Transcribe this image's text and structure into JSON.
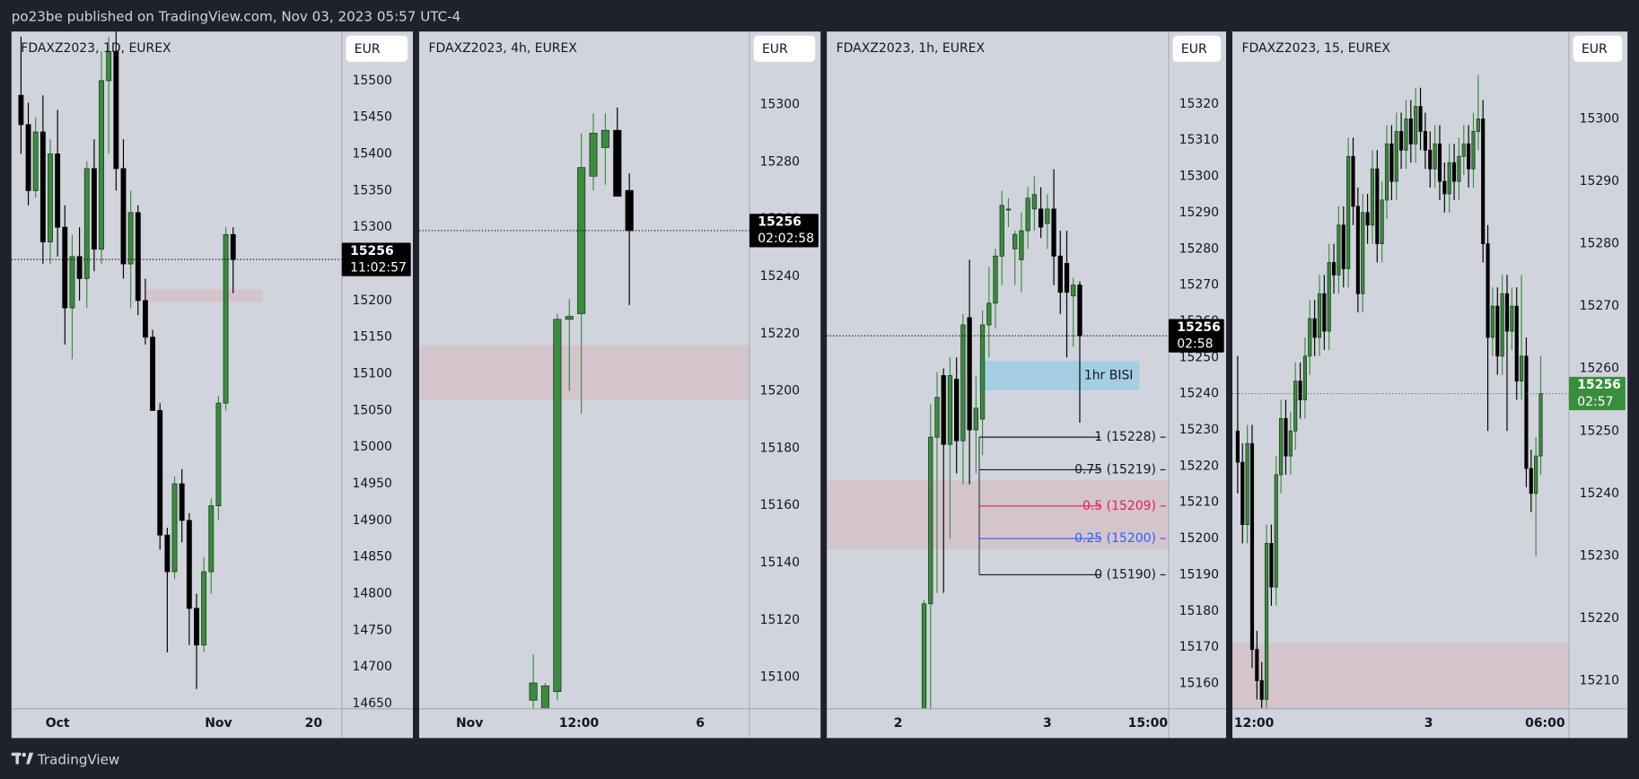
{
  "header": "po23be published on TradingView.com, Nov 03, 2023 05:57 UTC-4",
  "footer": "TradingView",
  "chart_data": [
    {
      "type": "candlestick",
      "title": "FDAXZ2023, 1D, EUREX",
      "currency": "EUR",
      "up_color": "#3b8c3e",
      "down_color": "#000000",
      "xlim": [
        -30.3,
        14.86
      ],
      "xticks": [
        {
          "value": -24,
          "label": "Oct"
        },
        {
          "value": -2,
          "label": "Nov"
        },
        {
          "value": 11,
          "label": "20"
        }
      ],
      "ylim": [
        14643,
        15567
      ],
      "yticks": [
        14650,
        14700,
        14750,
        14800,
        14850,
        14900,
        14950,
        15000,
        15050,
        15100,
        15150,
        15200,
        15250,
        15300,
        15350,
        15400,
        15450,
        15500
      ],
      "x": [
        -29,
        -28,
        -27,
        -26,
        -25,
        -24,
        -23,
        -22,
        -21,
        -20,
        -19,
        -18,
        -17,
        -16,
        -15,
        -14,
        -13,
        -12,
        -11,
        -10,
        -9,
        -8,
        -7,
        -6,
        -5,
        -4,
        -3,
        -2,
        -1,
        0
      ],
      "open": [
        15480,
        15440,
        15350,
        15430,
        15280,
        15400,
        15300,
        15190,
        15260,
        15230,
        15380,
        15270,
        15500,
        15540,
        15380,
        15250,
        15320,
        15200,
        15150,
        15050,
        14880,
        14830,
        14950,
        14900,
        14780,
        14730,
        14830,
        14920,
        15060,
        15290
      ],
      "high": [
        15560,
        15470,
        15450,
        15480,
        15420,
        15460,
        15330,
        15290,
        15300,
        15390,
        15420,
        15540,
        15560,
        15570,
        15420,
        15350,
        15330,
        15230,
        15160,
        15060,
        14890,
        14960,
        14970,
        14910,
        14800,
        14850,
        14930,
        15070,
        15300,
        15300
      ],
      "low": [
        15400,
        15330,
        15340,
        15250,
        15250,
        15260,
        15140,
        15120,
        15200,
        15190,
        15240,
        15250,
        15400,
        15350,
        15230,
        15190,
        15180,
        15140,
        15050,
        14860,
        14720,
        14820,
        14870,
        14730,
        14670,
        14720,
        14800,
        14900,
        15050,
        15210
      ],
      "close": [
        15440,
        15350,
        15430,
        15280,
        15400,
        15300,
        15190,
        15260,
        15230,
        15380,
        15270,
        15500,
        15540,
        15380,
        15250,
        15320,
        15200,
        15150,
        15050,
        14880,
        14830,
        14950,
        14900,
        14780,
        14730,
        14830,
        14920,
        15060,
        15290,
        15256
      ],
      "zones": [
        {
          "x": [
            -12,
            4
          ],
          "y": [
            15198,
            15215
          ],
          "color": "rgba(242,54,69,0.1)"
        }
      ],
      "last_price": 15256,
      "countdown": "11:02:57",
      "last_color": "#000000"
    },
    {
      "type": "candlestick",
      "title": "FDAXZ2023, 4h, EUREX",
      "currency": "EUR",
      "up_color": "#3b8c3e",
      "down_color": "#000000",
      "xlim": [
        -17.5,
        10
      ],
      "xticks": [
        {
          "value": -13.3,
          "label": "Nov"
        },
        {
          "value": -4.2,
          "label": "12:00"
        },
        {
          "value": 5.9,
          "label": "6"
        }
      ],
      "ylim": [
        15089,
        15325.5
      ],
      "yticks": [
        15100,
        15120,
        15140,
        15160,
        15180,
        15200,
        15220,
        15240,
        15260,
        15280,
        15300
      ],
      "x": [
        -8,
        -7,
        -6,
        -5,
        -4,
        -3,
        -2,
        -1,
        0
      ],
      "open": [
        15092,
        15089,
        15095,
        15225,
        15227,
        15275,
        15285,
        15291,
        15270
      ],
      "high": [
        15108,
        15098,
        15227,
        15232,
        15290,
        15297,
        15297,
        15299,
        15276
      ],
      "low": [
        15089,
        15089,
        15092,
        15200,
        15192,
        15270,
        15272,
        15268,
        15230
      ],
      "close": [
        15098,
        15097,
        15225,
        15226,
        15278,
        15290,
        15291,
        15268,
        15256
      ],
      "zones": [
        {
          "x": [
            -17.5,
            10
          ],
          "y": [
            15197,
            15216
          ],
          "color": "rgba(242,54,69,0.1)"
        }
      ],
      "last_price": 15256,
      "countdown": "02:02:58",
      "last_color": "#000000"
    },
    {
      "type": "candlestick",
      "title": "FDAXZ2023, 1h, EUREX",
      "currency": "EUR",
      "up_color": "#3b8c3e",
      "down_color": "#000000",
      "xlim": [
        -39,
        13.7
      ],
      "xticks": [
        {
          "value": -28,
          "label": "2"
        },
        {
          "value": -5,
          "label": "3"
        },
        {
          "value": 10.5,
          "label": "15:00"
        }
      ],
      "ylim": [
        15153,
        15340
      ],
      "yticks": [
        15160,
        15170,
        15180,
        15190,
        15200,
        15210,
        15220,
        15230,
        15240,
        15250,
        15260,
        15270,
        15280,
        15290,
        15300,
        15310,
        15320
      ],
      "x": [
        -24,
        -23,
        -22,
        -21,
        -20,
        -19,
        -18,
        -17,
        -16,
        -15,
        -14,
        -13,
        -12,
        -11,
        -10,
        -9,
        -8,
        -7,
        -6,
        -5,
        -4,
        -3,
        -2,
        -1,
        0
      ],
      "open": [
        15150,
        15182,
        15228,
        15245,
        15226,
        15244,
        15227,
        15261,
        15230,
        15233,
        15259,
        15265,
        15278,
        15291,
        15280,
        15277,
        15285,
        15291,
        15291,
        15287,
        15291,
        15278,
        15276,
        15267,
        15270
      ],
      "high": [
        15183,
        15237,
        15246,
        15247,
        15250,
        15250,
        15262,
        15277,
        15245,
        15263,
        15275,
        15280,
        15296,
        15294,
        15285,
        15290,
        15297,
        15300,
        15297,
        15295,
        15302,
        15285,
        15285,
        15272,
        15271
      ],
      "low": [
        15140,
        15150,
        15185,
        15185,
        15200,
        15218,
        15215,
        15215,
        15218,
        15223,
        15250,
        15258,
        15270,
        15286,
        15270,
        15268,
        15280,
        15285,
        15283,
        15280,
        15270,
        15262,
        15250,
        15253,
        15232
      ],
      "close": [
        15182,
        15228,
        15239,
        15226,
        15245,
        15227,
        15259,
        15230,
        15236,
        15259,
        15265,
        15278,
        15292,
        15291,
        15284,
        15285,
        15294,
        15295,
        15286,
        15291,
        15278,
        15268,
        15268,
        15270,
        15256
      ],
      "zones": [
        {
          "x": [
            -39,
            13.7
          ],
          "y": [
            15197,
            15216
          ],
          "color": "rgba(242,54,69,0.1)"
        },
        {
          "x": [
            -15.5,
            9.2
          ],
          "y": [
            15241,
            15249
          ],
          "color": "rgba(120,200,230,0.5)",
          "label": "1hr BISI"
        }
      ],
      "fib": {
        "x": [
          -15.5,
          3.2
        ],
        "levels": [
          {
            "value": 15228,
            "label": "1 (15228)",
            "color": "#131722"
          },
          {
            "value": 15219,
            "label": "0.75 (15219)",
            "color": "#131722"
          },
          {
            "value": 15209,
            "label": "0.5 (15209)",
            "color": "#e91e4d"
          },
          {
            "value": 15200,
            "label": "0.25 (15200)",
            "color": "#2962ff"
          },
          {
            "value": 15190,
            "label": "0 (15190)",
            "color": "#131722"
          }
        ]
      },
      "last_price": 15256,
      "countdown": "02:58",
      "last_color": "#000000"
    },
    {
      "type": "candlestick",
      "title": "FDAXZ2023, 15, EUREX",
      "currency": "EUR",
      "up_color": "#3b8c3e",
      "down_color": "#000000",
      "xlim": [
        -64.1,
        5.87
      ],
      "xticks": [
        {
          "value": -59.6,
          "label": "12:00"
        },
        {
          "value": -23.3,
          "label": "3"
        },
        {
          "value": 0.9,
          "label": "06:00"
        }
      ],
      "ylim": [
        15205.5,
        15314
      ],
      "yticks": [
        15210,
        15220,
        15230,
        15240,
        15250,
        15260,
        15270,
        15280,
        15290,
        15300
      ],
      "x": [
        -63,
        -62,
        -61,
        -60,
        -59,
        -58,
        -57,
        -56,
        -55,
        -54,
        -53,
        -52,
        -51,
        -50,
        -49,
        -48,
        -47,
        -46,
        -45,
        -44,
        -43,
        -42,
        -41,
        -40,
        -39,
        -38,
        -37,
        -36,
        -35,
        -34,
        -33,
        -32,
        -31,
        -30,
        -29,
        -28,
        -27,
        -26,
        -25,
        -24,
        -23,
        -22,
        -21,
        -20,
        -19,
        -18,
        -17,
        -16,
        -15,
        -14,
        -13,
        -12,
        -11,
        -10,
        -9,
        -8,
        -7,
        -6,
        -5,
        -4,
        -3,
        -2,
        -1,
        0
      ],
      "open": [
        15250,
        15245,
        15235,
        15248,
        15215,
        15210,
        15207,
        15232,
        15225,
        15243,
        15252,
        15246,
        15250,
        15258,
        15255,
        15262,
        15268,
        15265,
        15272,
        15266,
        15277,
        15275,
        15283,
        15276,
        15294,
        15286,
        15272,
        15285,
        15283,
        15292,
        15280,
        15287,
        15296,
        15290,
        15298,
        15295,
        15300,
        15296,
        15302,
        15298,
        15295,
        15292,
        15296,
        15290,
        15288,
        15293,
        15290,
        15294,
        15296,
        15292,
        15298,
        15300,
        15280,
        15265,
        15270,
        15262,
        15272,
        15266,
        15270,
        15258,
        15262,
        15244,
        15240,
        15246
      ],
      "high": [
        15262,
        15248,
        15251,
        15251,
        15218,
        15213,
        15235,
        15235,
        15246,
        15255,
        15255,
        15253,
        15261,
        15261,
        15265,
        15271,
        15271,
        15275,
        15275,
        15280,
        15280,
        15286,
        15286,
        15297,
        15297,
        15289,
        15288,
        15288,
        15295,
        15295,
        15290,
        15299,
        15299,
        15301,
        15301,
        15303,
        15303,
        15305,
        15305,
        15301,
        15298,
        15299,
        15299,
        15293,
        15296,
        15296,
        15297,
        15299,
        15299,
        15301,
        15307,
        15303,
        15283,
        15273,
        15273,
        15275,
        15275,
        15273,
        15273,
        15275,
        15265,
        15247,
        15249,
        15262
      ],
      "low": [
        15240,
        15232,
        15232,
        15212,
        15207,
        15204,
        15204,
        15222,
        15222,
        15240,
        15243,
        15243,
        15247,
        15252,
        15252,
        15259,
        15262,
        15262,
        15263,
        15263,
        15272,
        15272,
        15273,
        15273,
        15283,
        15269,
        15269,
        15280,
        15280,
        15277,
        15277,
        15284,
        15287,
        15287,
        15292,
        15292,
        15293,
        15293,
        15295,
        15292,
        15289,
        15289,
        15287,
        15285,
        15285,
        15287,
        15287,
        15291,
        15289,
        15289,
        15295,
        15277,
        15250,
        15262,
        15259,
        15259,
        15250,
        15263,
        15255,
        15255,
        15241,
        15237,
        15230,
        15243
      ],
      "close": [
        15245,
        15235,
        15248,
        15215,
        15210,
        15207,
        15232,
        15225,
        15243,
        15252,
        15246,
        15250,
        15258,
        15255,
        15262,
        15268,
        15265,
        15272,
        15266,
        15277,
        15275,
        15283,
        15276,
        15294,
        15286,
        15272,
        15285,
        15283,
        15292,
        15280,
        15287,
        15296,
        15290,
        15298,
        15295,
        15300,
        15296,
        15302,
        15298,
        15295,
        15292,
        15296,
        15290,
        15288,
        15293,
        15290,
        15294,
        15296,
        15292,
        15298,
        15300,
        15280,
        15265,
        15270,
        15262,
        15272,
        15266,
        15270,
        15258,
        15262,
        15244,
        15240,
        15246,
        15256
      ],
      "zones": [
        {
          "x": [
            -64.1,
            5.87
          ],
          "y": [
            15205.5,
            15216
          ],
          "color": "rgba(242,54,69,0.1)"
        }
      ],
      "last_price": 15256,
      "countdown": "02:57",
      "last_color": "#388e3c"
    }
  ]
}
